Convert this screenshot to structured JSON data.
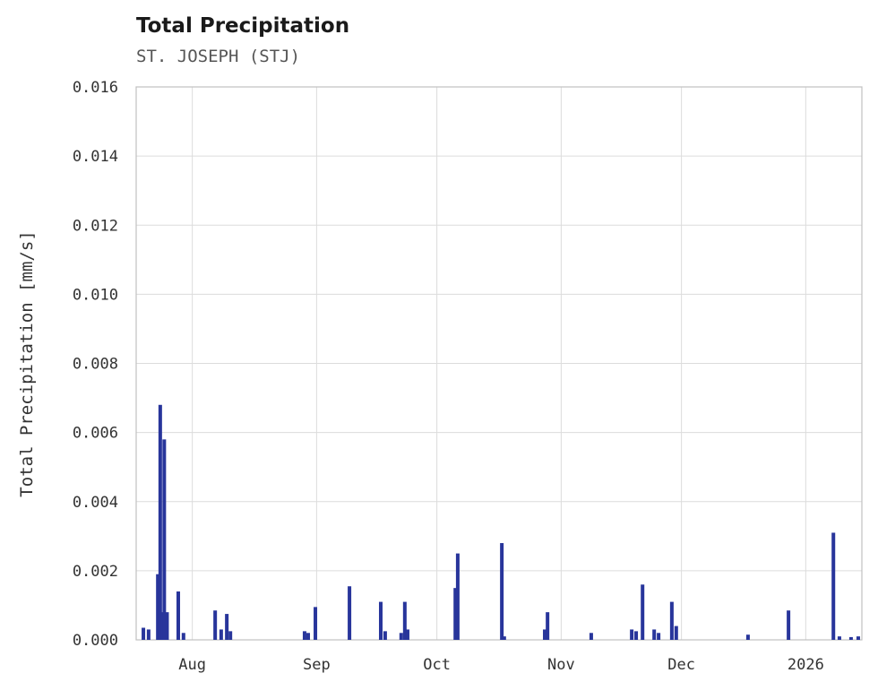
{
  "chart_data": {
    "type": "bar",
    "title": "Total Precipitation",
    "subtitle": "ST. JOSEPH (STJ)",
    "ylabel": "Total Precipitation [mm/s]",
    "xlabel": "",
    "ylim": [
      0,
      0.016
    ],
    "y_ticks": [
      0.0,
      0.002,
      0.004,
      0.006,
      0.008,
      0.01,
      0.012,
      0.014,
      0.016
    ],
    "x_domain_days": [
      0,
      181
    ],
    "x_ticks": [
      {
        "day": 14,
        "label": "Aug"
      },
      {
        "day": 45,
        "label": "Sep"
      },
      {
        "day": 75,
        "label": "Oct"
      },
      {
        "day": 106,
        "label": "Nov"
      },
      {
        "day": 136,
        "label": "Dec"
      },
      {
        "day": 167,
        "label": "2026"
      }
    ],
    "grid": true,
    "legend": "none",
    "bar_color": "#28359b",
    "grid_color": "#dcdcdc",
    "border_color": "#c0c0c0",
    "points": [
      {
        "day": 1.8,
        "value": 0.00035
      },
      {
        "day": 3.1,
        "value": 0.0003
      },
      {
        "day": 5.4,
        "value": 0.0019
      },
      {
        "day": 6.0,
        "value": 0.0068
      },
      {
        "day": 6.6,
        "value": 0.0008
      },
      {
        "day": 7.0,
        "value": 0.0058
      },
      {
        "day": 7.7,
        "value": 0.0008
      },
      {
        "day": 10.5,
        "value": 0.0014
      },
      {
        "day": 11.8,
        "value": 0.0002
      },
      {
        "day": 19.7,
        "value": 0.00085
      },
      {
        "day": 21.2,
        "value": 0.0003
      },
      {
        "day": 22.6,
        "value": 0.00075
      },
      {
        "day": 23.5,
        "value": 0.00025
      },
      {
        "day": 42.0,
        "value": 0.00025
      },
      {
        "day": 42.9,
        "value": 0.0002
      },
      {
        "day": 44.7,
        "value": 0.00095
      },
      {
        "day": 53.2,
        "value": 0.00155
      },
      {
        "day": 61.0,
        "value": 0.0011
      },
      {
        "day": 62.1,
        "value": 0.00025
      },
      {
        "day": 66.1,
        "value": 0.0002
      },
      {
        "day": 67.0,
        "value": 0.0011
      },
      {
        "day": 67.7,
        "value": 0.0003
      },
      {
        "day": 79.6,
        "value": 0.0015
      },
      {
        "day": 80.2,
        "value": 0.0025
      },
      {
        "day": 91.2,
        "value": 0.0028
      },
      {
        "day": 91.8,
        "value": 0.0001
      },
      {
        "day": 101.9,
        "value": 0.0003
      },
      {
        "day": 102.6,
        "value": 0.0008
      },
      {
        "day": 113.5,
        "value": 0.0002
      },
      {
        "day": 123.6,
        "value": 0.0003
      },
      {
        "day": 124.7,
        "value": 0.00025
      },
      {
        "day": 126.3,
        "value": 0.0016
      },
      {
        "day": 129.2,
        "value": 0.0003
      },
      {
        "day": 130.3,
        "value": 0.0002
      },
      {
        "day": 133.6,
        "value": 0.0011
      },
      {
        "day": 134.7,
        "value": 0.0004
      },
      {
        "day": 152.6,
        "value": 0.00015
      },
      {
        "day": 162.7,
        "value": 0.00085
      },
      {
        "day": 173.9,
        "value": 0.0031
      },
      {
        "day": 175.4,
        "value": 0.0001
      },
      {
        "day": 178.3,
        "value": 8e-05
      },
      {
        "day": 180.1,
        "value": 0.0001
      }
    ]
  }
}
